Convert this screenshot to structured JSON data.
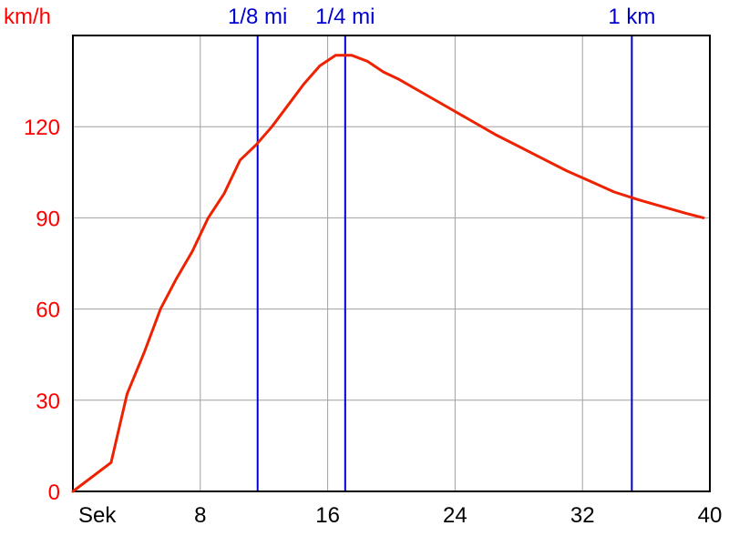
{
  "chart_data": {
    "type": "line",
    "title": "",
    "xlabel": "Sek",
    "ylabel": "km/h",
    "xlim": [
      0,
      40
    ],
    "ylim": [
      0,
      150
    ],
    "x_ticks": [
      8,
      16,
      24,
      32,
      40
    ],
    "x_tick_labels": [
      "8",
      "16",
      "24",
      "32",
      "40"
    ],
    "y_ticks": [
      0,
      30,
      60,
      90,
      120
    ],
    "y_tick_labels": [
      "0",
      "30",
      "60",
      "90",
      "120"
    ],
    "grid": true,
    "colors": {
      "series": "#ee2200",
      "markers": "#0000cc",
      "grid": "#a0a0a0",
      "axis": "#000000",
      "ytick": "#ff0000"
    },
    "series": [
      {
        "x": [
          0,
          2.4,
          3.4,
          4.5,
          5.5,
          6.5,
          7.5,
          8.5,
          9.5,
          10.5,
          11.5,
          12.5,
          13.5,
          14.5,
          15.5,
          16.5,
          17.5,
          18.5,
          19.5,
          20.5,
          22.0,
          23.5,
          25.0,
          26.5,
          28.0,
          29.5,
          31.0,
          32.5,
          34.0,
          35.5,
          36.5,
          37.5,
          38.5,
          39.6
        ],
        "y": [
          0,
          9.5,
          32,
          46,
          60,
          70,
          79,
          90,
          98,
          109,
          114,
          120,
          127,
          134,
          140,
          143.5,
          143.5,
          141.5,
          138,
          135.5,
          131,
          126.5,
          122,
          117.5,
          113.5,
          109.5,
          105.5,
          102,
          98.5,
          96,
          94.5,
          93,
          91.5,
          90
        ]
      }
    ],
    "markers": [
      {
        "x": 11.6,
        "label": "1/8 mi"
      },
      {
        "x": 17.1,
        "label": "1/4 mi"
      },
      {
        "x": 35.1,
        "label": "1 km"
      }
    ]
  }
}
